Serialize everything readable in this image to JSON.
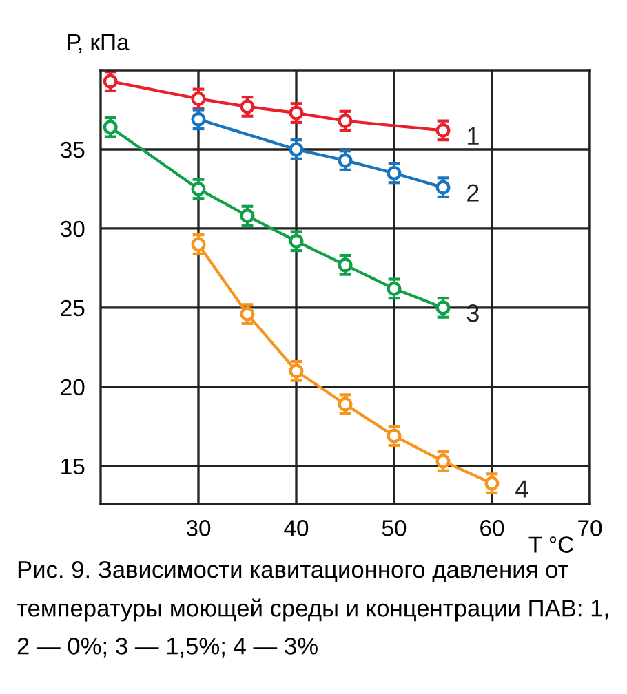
{
  "chart_data": {
    "type": "line",
    "ylabel": "Р, кПа",
    "xlabel": "T °C",
    "xlim": [
      20,
      70
    ],
    "ylim": [
      12.6,
      40
    ],
    "xticks": [
      30,
      40,
      50,
      60,
      70
    ],
    "yticks": [
      15,
      20,
      25,
      30,
      35
    ],
    "grid": true,
    "marker": "circle",
    "line_style": "solid",
    "legend": false,
    "series": [
      {
        "name": "1",
        "color": "#e8202a",
        "x": [
          21,
          30,
          35,
          40,
          45,
          55
        ],
        "values": [
          39.3,
          38.2,
          37.7,
          37.3,
          36.8,
          36.2
        ],
        "errors": [
          0.6,
          0.6,
          0.6,
          0.6,
          0.6,
          0.6
        ]
      },
      {
        "name": "2",
        "color": "#1a75bc",
        "x": [
          30,
          40,
          45,
          50,
          55
        ],
        "values": [
          36.9,
          35.0,
          34.3,
          33.5,
          32.6
        ],
        "errors": [
          0.6,
          0.6,
          0.6,
          0.6,
          0.6
        ]
      },
      {
        "name": "3",
        "color": "#10a04a",
        "x": [
          21,
          30,
          35,
          40,
          45,
          50,
          55
        ],
        "values": [
          36.4,
          32.5,
          30.8,
          29.2,
          27.7,
          26.2,
          25.0
        ],
        "errors": [
          0.6,
          0.6,
          0.6,
          0.6,
          0.6,
          0.6,
          0.6
        ]
      },
      {
        "name": "4",
        "color": "#f7941d",
        "x": [
          30,
          35,
          40,
          45,
          50,
          55,
          60
        ],
        "values": [
          29.0,
          24.6,
          21.0,
          18.9,
          16.9,
          15.3,
          13.9
        ],
        "errors": [
          0.6,
          0.6,
          0.6,
          0.6,
          0.6,
          0.6,
          0.6
        ]
      }
    ],
    "annotations": [
      "Рис. 9. Зависимости кавитационного давления от температуры моющей среды и концентрации ПАВ: 1, 2 — 0%; 3 — 1,5%; 4 — 3%"
    ]
  }
}
